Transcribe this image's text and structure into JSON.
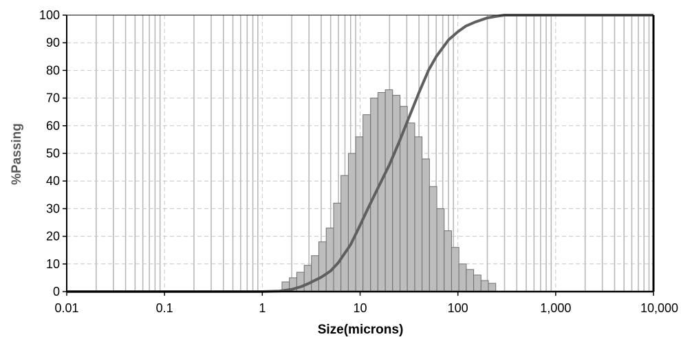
{
  "chart_data": {
    "type": "bar",
    "xlabel": "Size(microns)",
    "ylabel": "%Passing",
    "x_scale": "log",
    "xlim": [
      0.01,
      10000
    ],
    "ylim": [
      0,
      100
    ],
    "x_tick_labels": [
      "0.01",
      "0.1",
      "1",
      "10",
      "100",
      "1,000",
      "10,000"
    ],
    "x_tick_values": [
      0.01,
      0.1,
      1,
      10,
      100,
      1000,
      10000
    ],
    "y_tick_labels": [
      "0",
      "10",
      "20",
      "30",
      "40",
      "50",
      "60",
      "70",
      "80",
      "90",
      "100"
    ],
    "y_tick_values": [
      0,
      10,
      20,
      30,
      40,
      50,
      60,
      70,
      80,
      90,
      100
    ],
    "grid": true,
    "series": [
      {
        "kind": "histogram",
        "bin_edges": [
          1.59,
          1.89,
          2.25,
          2.68,
          3.18,
          3.78,
          4.5,
          5.36,
          6.37,
          7.58,
          9.02,
          10.7,
          12.8,
          15.2,
          18.1,
          21.5,
          25.6,
          30.4,
          36.2,
          43.0,
          51.2,
          60.9,
          72.4,
          86.1,
          102.4,
          121.8,
          144.9,
          172.3,
          204.9,
          243.8
        ],
        "values": [
          3.5,
          5,
          7,
          9.5,
          13,
          18,
          23,
          32,
          42,
          50,
          56,
          64,
          70,
          72,
          73,
          71,
          67,
          61,
          56,
          48,
          38,
          30,
          22,
          16,
          10,
          8,
          6,
          4,
          3
        ]
      },
      {
        "kind": "line",
        "x": [
          0.01,
          0.1,
          1,
          1.5,
          2,
          2.5,
          3,
          4,
          5,
          6,
          8,
          10,
          12,
          15,
          20,
          25,
          30,
          40,
          50,
          60,
          80,
          100,
          120,
          150,
          200,
          250,
          300,
          500,
          1000,
          10000
        ],
        "y": [
          0,
          0,
          0,
          0.2,
          0.8,
          1.8,
          3,
          5.2,
          7.5,
          10.5,
          17,
          24,
          30,
          37,
          46,
          54,
          61,
          72,
          80,
          85,
          91,
          94,
          96,
          97.5,
          99,
          99.6,
          100,
          100,
          100,
          100
        ]
      }
    ],
    "colors": {
      "bar_fill": "#bdbdbd",
      "bar_stroke": "#6e6e6e",
      "line": "#5f5f5f",
      "grid_major": "#c6c6c6",
      "grid_minor": "#b8b8b8",
      "axis": "#000000"
    }
  }
}
